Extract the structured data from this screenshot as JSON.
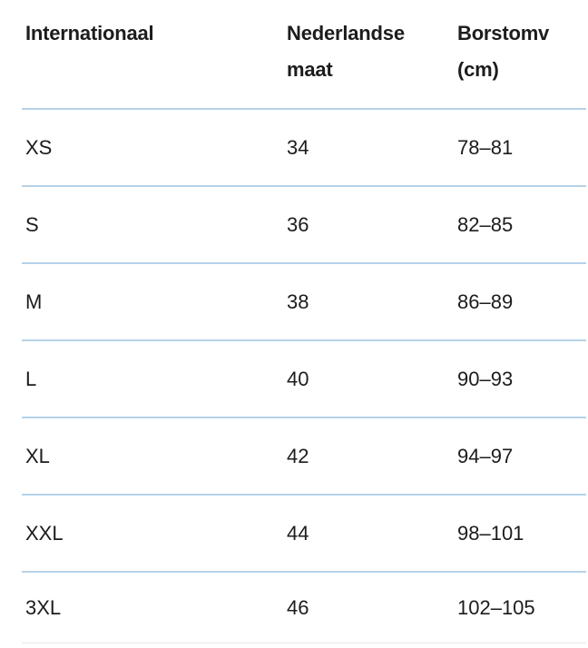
{
  "table": {
    "columns": [
      {
        "label": "Internationaal"
      },
      {
        "label": "Nederlandse maat"
      },
      {
        "label": "Borstomv (cm)"
      }
    ],
    "rows": [
      {
        "cells": [
          "XS",
          "34",
          "78–81"
        ]
      },
      {
        "cells": [
          "S",
          "36",
          "82–85"
        ]
      },
      {
        "cells": [
          "M",
          "38",
          "86–89"
        ]
      },
      {
        "cells": [
          "L",
          "40",
          "90–93"
        ]
      },
      {
        "cells": [
          "XL",
          "42",
          "94–97"
        ]
      },
      {
        "cells": [
          "XXL",
          "44",
          "98–101"
        ]
      },
      {
        "cells": [
          "3XL",
          "46",
          "102–105"
        ]
      }
    ]
  },
  "colors": {
    "divider_blue": "#b5d2e9",
    "bottom_hairline": "#e7e7e7",
    "text": "#1c1c1c",
    "background": "#ffffff"
  }
}
